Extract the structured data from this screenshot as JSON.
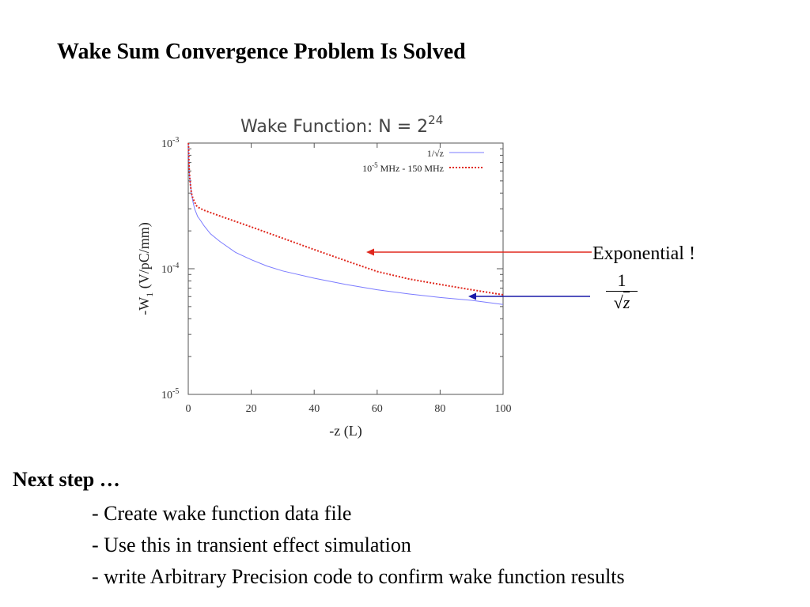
{
  "slide": {
    "title": "Wake Sum Convergence Problem Is Solved",
    "next_step_heading": "Next step …",
    "steps": [
      "- Create wake function data file",
      "- Use this in transient effect simulation",
      "- write Arbitrary Precision code to confirm wake function results"
    ]
  },
  "annotations": {
    "exponential_label": "Exponential !",
    "sqrt_numerator": "1",
    "sqrt_symbol": "√",
    "sqrt_variable": "z"
  },
  "chart_data": {
    "type": "line",
    "title_prefix": "Wake Function: N = 2",
    "title_exponent": "24",
    "xlabel": "-z (L)",
    "ylabel_prefix": "-W",
    "ylabel_subscript": "1",
    "ylabel_suffix": " (V/pC/mm)",
    "xlim": [
      0,
      100
    ],
    "ylim": [
      1e-05,
      0.001
    ],
    "y_scale": "log",
    "x_ticks": [
      0,
      20,
      40,
      60,
      80,
      100
    ],
    "y_ticks": [
      {
        "value": 1e-05,
        "base": "10",
        "exp": "-5"
      },
      {
        "value": 0.0001,
        "base": "10",
        "exp": "-4"
      },
      {
        "value": 0.001,
        "base": "10",
        "exp": "-3"
      }
    ],
    "legend_position": "top-right",
    "series": [
      {
        "name": "1/√z",
        "color": "#7b7bff",
        "style": "solid",
        "x": [
          0.05,
          0.1,
          0.2,
          0.35,
          0.5,
          0.75,
          1,
          1.5,
          2,
          3,
          4,
          5,
          7,
          10,
          15,
          20,
          25,
          30,
          40,
          50,
          60,
          70,
          80,
          90,
          100
        ],
        "y": [
          0.001,
          0.00092,
          0.00072,
          0.00058,
          0.00052,
          0.00045,
          0.0004,
          0.00034,
          0.0003,
          0.00026,
          0.00024,
          0.00022,
          0.00019,
          0.000165,
          0.000135,
          0.000118,
          0.000105,
          9.6e-05,
          8.4e-05,
          7.5e-05,
          6.8e-05,
          6.3e-05,
          5.9e-05,
          5.6e-05,
          5.2e-05
        ]
      },
      {
        "name": "10^-5 MHz - 150 MHz",
        "name_base": "10",
        "name_exp": "-5",
        "name_rest": " MHz - 150 MHz",
        "color": "#e0281e",
        "style": "dotted",
        "x": [
          0.05,
          0.1,
          0.2,
          0.35,
          0.5,
          0.75,
          1,
          1.5,
          2,
          2.5,
          3,
          4,
          5,
          10,
          20,
          30,
          40,
          50,
          60,
          70,
          80,
          90,
          100
        ],
        "y": [
          0.001,
          0.00092,
          0.00072,
          0.00058,
          0.00052,
          0.00045,
          0.0004,
          0.00036,
          0.00034,
          0.00032,
          0.00031,
          0.0003,
          0.000292,
          0.000263,
          0.000215,
          0.000175,
          0.000142,
          0.000116,
          9.5e-05,
          8.3e-05,
          7.5e-05,
          6.8e-05,
          6.2e-05
        ]
      }
    ]
  }
}
